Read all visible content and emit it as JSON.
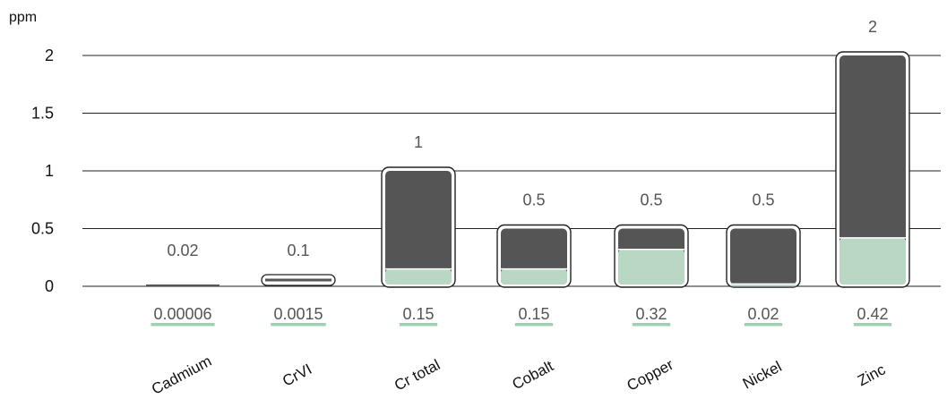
{
  "chart_data": {
    "type": "bar",
    "ylabel": "ppm",
    "ylim": [
      0,
      2.15
    ],
    "yticks": [
      "0",
      "0.5",
      "1",
      "1.5",
      "2"
    ],
    "ytick_values": [
      0,
      0.5,
      1,
      1.5,
      2
    ],
    "grid": true,
    "categories": [
      "Cadmium",
      "CrVI",
      "Cr total",
      "Cobalt",
      "Copper",
      "Nickel",
      "Zinc"
    ],
    "series": [
      {
        "values": [
          0.02,
          0.1,
          1,
          0.5,
          0.5,
          0.5,
          2
        ],
        "labels": [
          "0.02",
          "0.1",
          "1",
          "0.5",
          "0.5",
          "0.5",
          "2"
        ]
      },
      {
        "values": [
          6e-05,
          0.0015,
          0.15,
          0.15,
          0.32,
          0.02,
          0.42
        ],
        "labels": [
          "0.00006",
          "0.0015",
          "0.15",
          "0.15",
          "0.32",
          "0.02",
          "0.42"
        ]
      }
    ],
    "colors": {
      "limit": "#555555",
      "measured": "#b9d8c4",
      "outline": "#222222",
      "grid": "#222222",
      "underline": "#9fd0b2"
    }
  }
}
